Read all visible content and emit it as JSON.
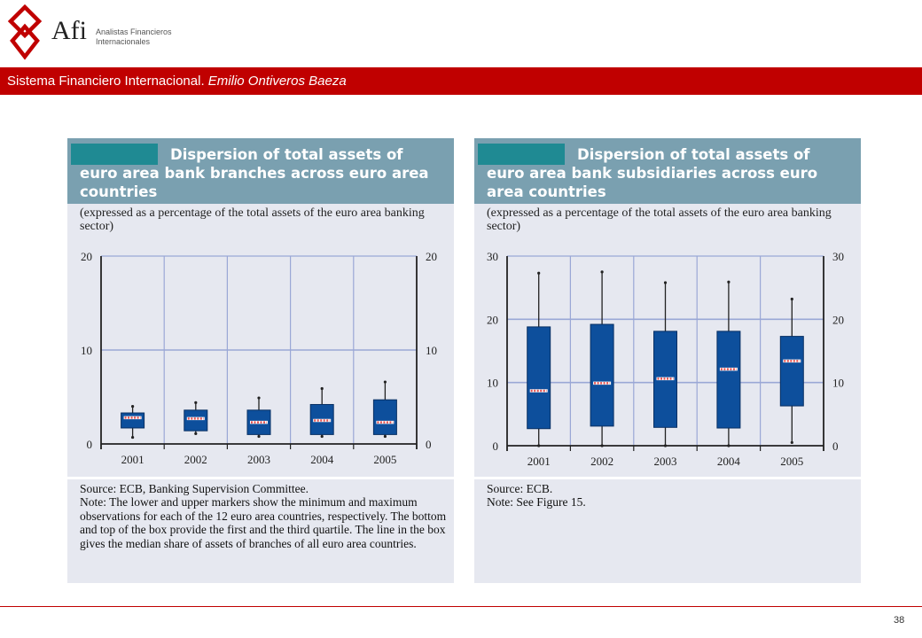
{
  "brand": {
    "name": "Afi",
    "subtitle_line1": "Analistas Financieros",
    "subtitle_line2": "Internacionales"
  },
  "header": {
    "title_main": "Sistema Financiero Internacional.",
    "title_author": "Emilio Ontiveros Baeza"
  },
  "page_number": "38",
  "colors": {
    "accent_red": "#c00000",
    "panel_header": "#7aa0b0",
    "box_fill": "#0d4f9c",
    "median_marker": "#e05050",
    "panel_bg": "#e6e8f0"
  },
  "panels": [
    {
      "title": "Dispersion of total assets of euro area bank branches across euro area countries",
      "subtitle": "(expressed as a percentage of the total assets of the euro area banking sector)",
      "source": "Source: ECB, Banking Supervision Committee.",
      "note": "Note: The lower and upper markers show the minimum and maximum observations for each of the 12 euro area countries, respectively. The bottom and top of the box provide the first and the third quartile. The line in the box gives the median share of assets of branches of all euro area countries."
    },
    {
      "title": "Dispersion of total assets of euro area bank subsidiaries across euro area countries",
      "subtitle": "(expressed as a percentage of the total assets of the euro area banking sector)",
      "source": "Source: ECB.",
      "note": "Note: See Figure 15."
    }
  ],
  "chart_data": [
    {
      "type": "boxplot",
      "categories": [
        "2001",
        "2002",
        "2003",
        "2004",
        "2005"
      ],
      "ylim": [
        0,
        20
      ],
      "yticks": [
        "0",
        "10",
        "20"
      ],
      "grid": true,
      "boxes": [
        {
          "min": 0.7,
          "q1": 1.7,
          "median": 2.8,
          "q3": 3.3,
          "max": 4.0
        },
        {
          "min": 1.1,
          "q1": 1.4,
          "median": 2.7,
          "q3": 3.6,
          "max": 4.4
        },
        {
          "min": 0.8,
          "q1": 1.0,
          "median": 2.3,
          "q3": 3.6,
          "max": 4.9
        },
        {
          "min": 0.8,
          "q1": 1.0,
          "median": 2.5,
          "q3": 4.2,
          "max": 5.9
        },
        {
          "min": 0.8,
          "q1": 1.0,
          "median": 2.3,
          "q3": 4.7,
          "max": 6.6
        }
      ]
    },
    {
      "type": "boxplot",
      "categories": [
        "2001",
        "2002",
        "2003",
        "2004",
        "2005"
      ],
      "ylim": [
        0,
        30
      ],
      "yticks": [
        "0",
        "10",
        "20",
        "30"
      ],
      "grid": true,
      "boxes": [
        {
          "min": 0.0,
          "q1": 2.7,
          "median": 8.7,
          "q3": 18.8,
          "max": 27.3
        },
        {
          "min": 0.0,
          "q1": 3.1,
          "median": 9.9,
          "q3": 19.2,
          "max": 27.5
        },
        {
          "min": 0.0,
          "q1": 2.9,
          "median": 10.6,
          "q3": 18.1,
          "max": 25.8
        },
        {
          "min": 0.0,
          "q1": 2.8,
          "median": 12.1,
          "q3": 18.1,
          "max": 25.9
        },
        {
          "min": 0.5,
          "q1": 6.3,
          "median": 13.4,
          "q3": 17.3,
          "max": 23.2
        }
      ]
    }
  ]
}
